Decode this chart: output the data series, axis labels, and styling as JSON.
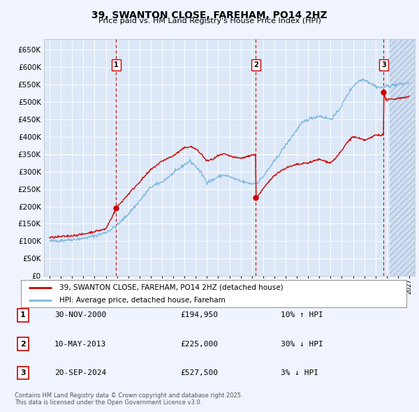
{
  "title": "39, SWANTON CLOSE, FAREHAM, PO14 2HZ",
  "subtitle": "Price paid vs. HM Land Registry's House Price Index (HPI)",
  "background_color": "#f0f4ff",
  "plot_bg_color": "#dce8f8",
  "grid_color": "#ffffff",
  "ylim": [
    0,
    680000
  ],
  "yticks": [
    0,
    50000,
    100000,
    150000,
    200000,
    250000,
    300000,
    350000,
    400000,
    450000,
    500000,
    550000,
    600000,
    650000
  ],
  "xlim_start": 1994.5,
  "xlim_end": 2027.5,
  "transactions": [
    {
      "num": 1,
      "date": "30-NOV-2000",
      "price": 194950,
      "year": 2000.917,
      "label": "10% ↑ HPI"
    },
    {
      "num": 2,
      "date": "10-MAY-2013",
      "price": 225000,
      "year": 2013.36,
      "label": "30% ↓ HPI"
    },
    {
      "num": 3,
      "date": "20-SEP-2024",
      "price": 527500,
      "year": 2024.72,
      "label": "3% ↓ HPI"
    }
  ],
  "legend_label_red": "39, SWANTON CLOSE, FAREHAM, PO14 2HZ (detached house)",
  "legend_label_blue": "HPI: Average price, detached house, Fareham",
  "footer": "Contains HM Land Registry data © Crown copyright and database right 2025.\nThis data is licensed under the Open Government Licence v3.0.",
  "hpi_color": "#7fb9e0",
  "price_color": "#cc0000",
  "hatch_color": "#c8ddf0",
  "dot_color": "#cc0000"
}
